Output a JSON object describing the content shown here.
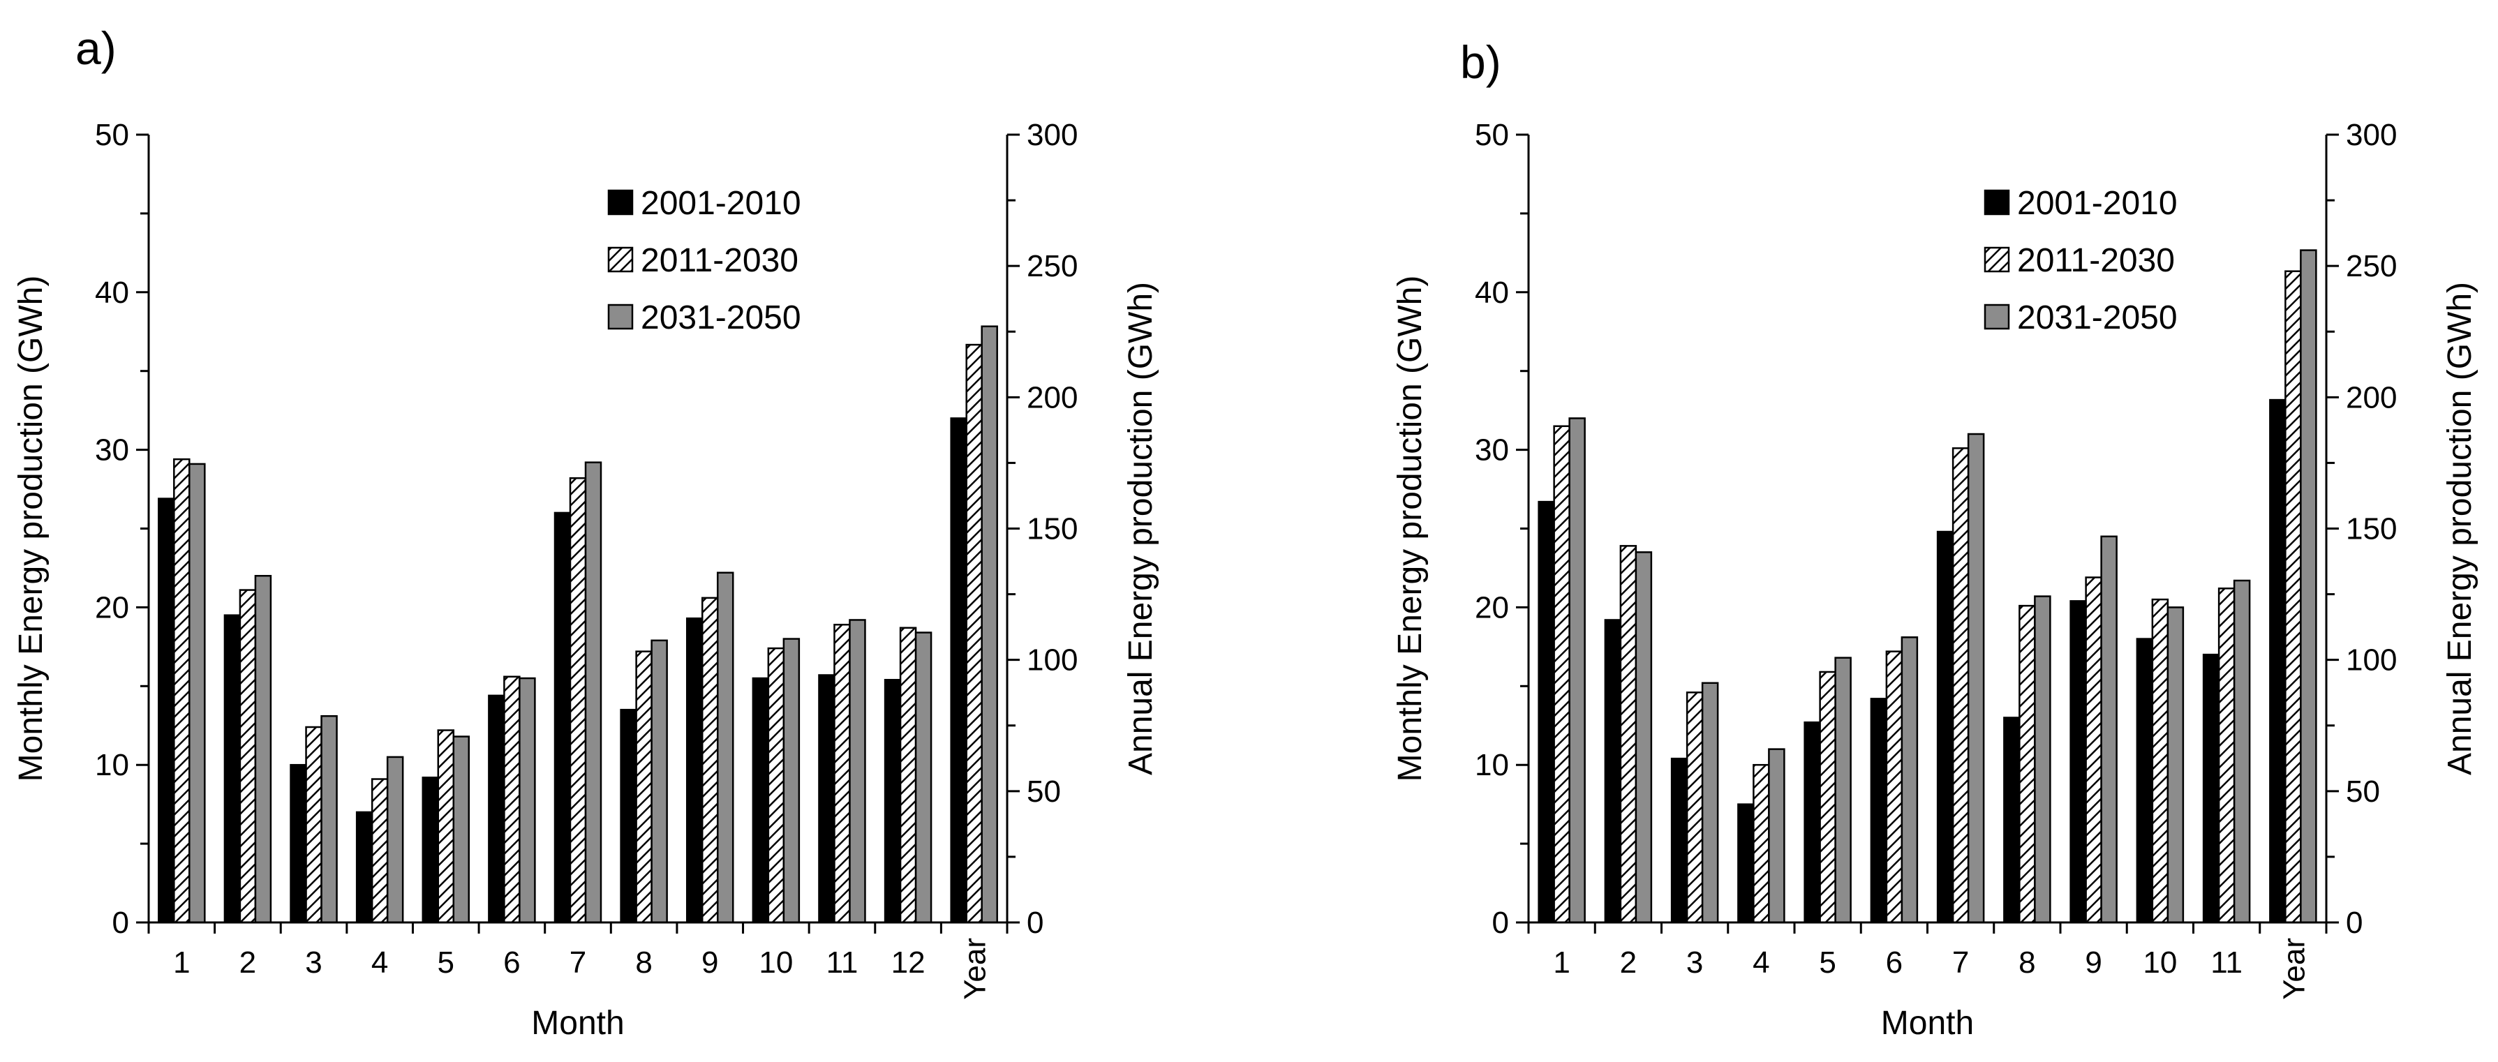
{
  "colors": {
    "series_1": "#000000",
    "series_2_hatch": "#000000",
    "series_3": "#8c8c8c",
    "axis": "#000000"
  },
  "chart_data": [
    {
      "panel_label": "a)",
      "type": "bar",
      "title": "",
      "xlabel": "Month",
      "ylabel_left": "Monthly Energy production (GWh)",
      "ylabel_right": "Annual Energy production (GWh)",
      "ylim_left": [
        0,
        50
      ],
      "ylim_right": [
        0,
        300
      ],
      "left_ticks": [
        "0",
        "10",
        "20",
        "30",
        "40",
        "50"
      ],
      "right_ticks": [
        "0",
        "50",
        "100",
        "150",
        "200",
        "250",
        "300"
      ],
      "categories": [
        "1",
        "2",
        "3",
        "4",
        "5",
        "6",
        "7",
        "8",
        "9",
        "10",
        "11",
        "12",
        "Year"
      ],
      "annual_category": "Year",
      "legend_position": "top-right",
      "series": [
        {
          "name": "2001-2010",
          "style": "solid-black",
          "values": [
            26.9,
            19.5,
            10.0,
            7.0,
            9.2,
            14.4,
            26.0,
            13.5,
            19.3,
            15.5,
            15.7,
            15.4,
            192
          ]
        },
        {
          "name": "2011-2030",
          "style": "hatched",
          "values": [
            29.4,
            21.1,
            12.4,
            9.1,
            12.2,
            15.6,
            28.2,
            17.2,
            20.6,
            17.4,
            18.9,
            18.7,
            220
          ]
        },
        {
          "name": "2031-2050",
          "style": "solid-gray",
          "values": [
            29.1,
            22.0,
            13.1,
            10.5,
            11.8,
            15.5,
            29.2,
            17.9,
            22.2,
            18.0,
            19.2,
            18.4,
            227
          ]
        }
      ]
    },
    {
      "panel_label": "b)",
      "type": "bar",
      "title": "",
      "xlabel": "Month",
      "ylabel_left": "Monthly Energy production (GWh)",
      "ylabel_right": "Annual Energy production (GWh)",
      "ylim_left": [
        0,
        50
      ],
      "ylim_right": [
        0,
        300
      ],
      "left_ticks": [
        "0",
        "10",
        "20",
        "30",
        "40",
        "50"
      ],
      "right_ticks": [
        "0",
        "50",
        "100",
        "150",
        "200",
        "250",
        "300"
      ],
      "categories": [
        "1",
        "2",
        "3",
        "4",
        "5",
        "6",
        "7",
        "8",
        "9",
        "10",
        "11",
        "Year"
      ],
      "annual_category": "Year",
      "legend_position": "top-right",
      "series": [
        {
          "name": "2001-2010",
          "style": "solid-black",
          "values": [
            26.7,
            19.2,
            10.4,
            7.5,
            12.7,
            14.2,
            24.8,
            13.0,
            20.4,
            18.0,
            17.0,
            199
          ]
        },
        {
          "name": "2011-2030",
          "style": "hatched",
          "values": [
            31.5,
            23.9,
            14.6,
            10.0,
            15.9,
            17.2,
            30.1,
            20.1,
            21.9,
            20.5,
            21.2,
            248
          ]
        },
        {
          "name": "2031-2050",
          "style": "solid-gray",
          "values": [
            32.0,
            23.5,
            15.2,
            11.0,
            16.8,
            18.1,
            31.0,
            20.7,
            24.5,
            20.0,
            21.7,
            256
          ]
        }
      ]
    }
  ]
}
